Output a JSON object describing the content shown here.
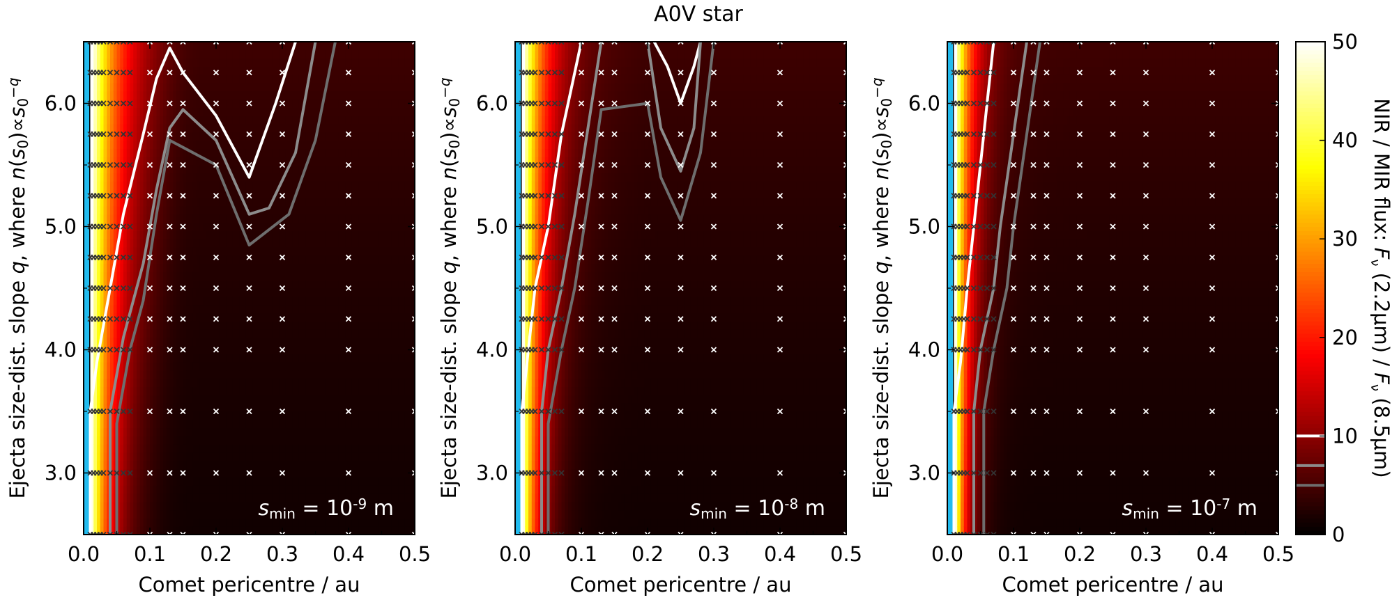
{
  "figure": {
    "title": "A0V star",
    "colorbar": {
      "label_parts": [
        "NIR / MIR flux: ",
        "F",
        "ν",
        " (2.2μm) / ",
        "F",
        "ν",
        " (8.5μm)"
      ],
      "ticks": [
        0,
        10,
        20,
        30,
        40,
        50
      ],
      "range": [
        0,
        50
      ],
      "contour_markers": [
        {
          "value": 10,
          "color": "#ffffff"
        },
        {
          "value": 7,
          "color": "#8c8c8c"
        },
        {
          "value": 5,
          "color": "#6e6e6e"
        }
      ],
      "colormap": "hot"
    }
  },
  "chart_data": [
    {
      "type": "heatmap",
      "panel": "left",
      "xlabel": "Comet pericentre / au",
      "ylabel_parts": [
        "Ejecta size-dist. slope ",
        "q",
        ", where ",
        "n",
        "(",
        "s",
        "0",
        ")∝",
        "s",
        "0",
        "−q"
      ],
      "xlim": [
        0,
        0.5
      ],
      "ylim": [
        2.5,
        6.5
      ],
      "xticks": [
        "0.0",
        "0.1",
        "0.2",
        "0.3",
        "0.4",
        "0.5"
      ],
      "yticks": [
        "3.0",
        "4.0",
        "5.0",
        "6.0"
      ],
      "annotation": {
        "main": "s",
        "sub": "min",
        "mid": " = 10",
        "sup": "-9",
        "end": " m"
      },
      "below_range_color": "#22bbee",
      "grid_x": [
        0.01,
        0.015,
        0.02,
        0.025,
        0.03,
        0.04,
        0.05,
        0.06,
        0.07,
        0.1,
        0.13,
        0.15,
        0.2,
        0.25,
        0.3,
        0.4,
        0.5
      ],
      "grid_y": [
        2.5,
        3.0,
        3.5,
        4.0,
        4.25,
        4.5,
        4.75,
        5.0,
        5.25,
        5.5,
        5.75,
        6.0,
        6.25,
        6.5
      ],
      "contours": [
        {
          "level": 10,
          "color": "#ffffff",
          "points": [
            [
              0.01,
              2.5
            ],
            [
              0.01,
              3.5
            ],
            [
              0.02,
              3.9
            ],
            [
              0.04,
              4.5
            ],
            [
              0.06,
              5.1
            ],
            [
              0.09,
              5.75
            ],
            [
              0.11,
              6.2
            ],
            [
              0.13,
              6.45
            ],
            [
              0.15,
              6.25
            ],
            [
              0.2,
              5.9
            ],
            [
              0.25,
              5.4
            ],
            [
              0.29,
              6.0
            ],
            [
              0.32,
              6.5
            ]
          ]
        },
        {
          "level": 7,
          "color": "#8c8c8c",
          "points": [
            [
              0.04,
              2.5
            ],
            [
              0.04,
              3.5
            ],
            [
              0.06,
              4.1
            ],
            [
              0.09,
              4.7
            ],
            [
              0.11,
              5.3
            ],
            [
              0.13,
              5.8
            ],
            [
              0.15,
              5.95
            ],
            [
              0.2,
              5.7
            ],
            [
              0.25,
              5.1
            ],
            [
              0.28,
              5.15
            ],
            [
              0.32,
              5.6
            ],
            [
              0.35,
              6.5
            ]
          ]
        },
        {
          "level": 5,
          "color": "#6e6e6e",
          "points": [
            [
              0.05,
              2.5
            ],
            [
              0.05,
              3.4
            ],
            [
              0.07,
              4.0
            ],
            [
              0.09,
              4.4
            ],
            [
              0.11,
              5.1
            ],
            [
              0.13,
              5.7
            ],
            [
              0.2,
              5.5
            ],
            [
              0.25,
              4.85
            ],
            [
              0.31,
              5.1
            ],
            [
              0.35,
              5.7
            ],
            [
              0.38,
              6.5
            ]
          ]
        }
      ]
    },
    {
      "type": "heatmap",
      "panel": "middle",
      "xlabel": "Comet pericentre / au",
      "ylabel_parts": [
        "Ejecta size-dist. slope ",
        "q",
        ", where ",
        "n",
        "(",
        "s",
        "0",
        ")∝",
        "s",
        "0",
        "−q"
      ],
      "xlim": [
        0,
        0.5
      ],
      "ylim": [
        2.5,
        6.5
      ],
      "xticks": [
        "0.0",
        "0.1",
        "0.2",
        "0.3",
        "0.4",
        "0.5"
      ],
      "yticks": [
        "3.0",
        "4.0",
        "5.0",
        "6.0"
      ],
      "annotation": {
        "main": "s",
        "sub": "min",
        "mid": " = 10",
        "sup": "-8",
        "end": " m"
      },
      "below_range_color": "#22bbee",
      "grid_x": [
        0.01,
        0.015,
        0.02,
        0.025,
        0.03,
        0.04,
        0.05,
        0.06,
        0.07,
        0.1,
        0.13,
        0.15,
        0.2,
        0.25,
        0.3,
        0.4,
        0.5
      ],
      "grid_y": [
        2.5,
        3.0,
        3.5,
        4.0,
        4.25,
        4.5,
        4.75,
        5.0,
        5.25,
        5.5,
        5.75,
        6.0,
        6.25,
        6.5
      ],
      "contours": [
        {
          "level": 10,
          "color": "#ffffff",
          "points": [
            [
              0.01,
              2.5
            ],
            [
              0.01,
              3.5
            ],
            [
              0.02,
              4.0
            ],
            [
              0.03,
              4.5
            ],
            [
              0.05,
              5.0
            ],
            [
              0.07,
              5.75
            ],
            [
              0.09,
              6.25
            ],
            [
              0.1,
              6.5
            ]
          ]
        },
        {
          "level": 10,
          "color": "#ffffff",
          "points": [
            [
              0.21,
              6.5
            ],
            [
              0.23,
              6.3
            ],
            [
              0.25,
              6.0
            ],
            [
              0.27,
              6.3
            ],
            [
              0.28,
              6.5
            ]
          ]
        },
        {
          "level": 7,
          "color": "#8c8c8c",
          "points": [
            [
              0.04,
              2.5
            ],
            [
              0.04,
              3.5
            ],
            [
              0.05,
              4.0
            ],
            [
              0.07,
              4.5
            ],
            [
              0.09,
              5.1
            ],
            [
              0.11,
              5.8
            ],
            [
              0.13,
              6.5
            ]
          ]
        },
        {
          "level": 7,
          "color": "#8c8c8c",
          "points": [
            [
              0.2,
              6.5
            ],
            [
              0.22,
              5.8
            ],
            [
              0.25,
              5.45
            ],
            [
              0.27,
              5.8
            ],
            [
              0.28,
              6.5
            ]
          ]
        },
        {
          "level": 5,
          "color": "#6e6e6e",
          "points": [
            [
              0.05,
              2.5
            ],
            [
              0.05,
              3.4
            ],
            [
              0.07,
              4.0
            ],
            [
              0.09,
              4.5
            ],
            [
              0.11,
              5.2
            ],
            [
              0.13,
              5.95
            ],
            [
              0.2,
              6.0
            ],
            [
              0.22,
              5.4
            ],
            [
              0.25,
              5.05
            ],
            [
              0.28,
              5.6
            ],
            [
              0.3,
              6.5
            ]
          ]
        }
      ]
    },
    {
      "type": "heatmap",
      "panel": "right",
      "xlabel": "Comet pericentre / au",
      "ylabel_parts": [
        "Ejecta size-dist. slope ",
        "q",
        ", where ",
        "n",
        "(",
        "s",
        "0",
        ")∝",
        "s",
        "0",
        "−q"
      ],
      "xlim": [
        0,
        0.5
      ],
      "ylim": [
        2.5,
        6.5
      ],
      "xticks": [
        "0.0",
        "0.1",
        "0.2",
        "0.3",
        "0.4",
        "0.5"
      ],
      "yticks": [
        "3.0",
        "4.0",
        "5.0",
        "6.0"
      ],
      "annotation": {
        "main": "s",
        "sub": "min",
        "mid": " = 10",
        "sup": "-7",
        "end": " m"
      },
      "below_range_color": "#22bbee",
      "grid_x": [
        0.01,
        0.015,
        0.02,
        0.025,
        0.03,
        0.04,
        0.05,
        0.06,
        0.07,
        0.1,
        0.13,
        0.15,
        0.2,
        0.25,
        0.3,
        0.4,
        0.5
      ],
      "grid_y": [
        2.5,
        3.0,
        3.5,
        4.0,
        4.25,
        4.5,
        4.75,
        5.0,
        5.25,
        5.5,
        5.75,
        6.0,
        6.25,
        6.5
      ],
      "contours": [
        {
          "level": 10,
          "color": "#ffffff",
          "points": [
            [
              0.01,
              2.5
            ],
            [
              0.01,
              3.5
            ],
            [
              0.02,
              3.9
            ],
            [
              0.03,
              4.5
            ],
            [
              0.04,
              5.0
            ],
            [
              0.055,
              5.75
            ],
            [
              0.07,
              6.5
            ]
          ]
        },
        {
          "level": 7,
          "color": "#8c8c8c",
          "points": [
            [
              0.04,
              2.5
            ],
            [
              0.04,
              3.5
            ],
            [
              0.05,
              4.0
            ],
            [
              0.07,
              4.5
            ],
            [
              0.08,
              5.0
            ],
            [
              0.1,
              5.75
            ],
            [
              0.12,
              6.5
            ]
          ]
        },
        {
          "level": 5,
          "color": "#6e6e6e",
          "points": [
            [
              0.055,
              2.5
            ],
            [
              0.055,
              3.5
            ],
            [
              0.07,
              4.0
            ],
            [
              0.09,
              4.5
            ],
            [
              0.1,
              5.0
            ],
            [
              0.12,
              5.75
            ],
            [
              0.14,
              6.5
            ]
          ]
        }
      ]
    }
  ]
}
